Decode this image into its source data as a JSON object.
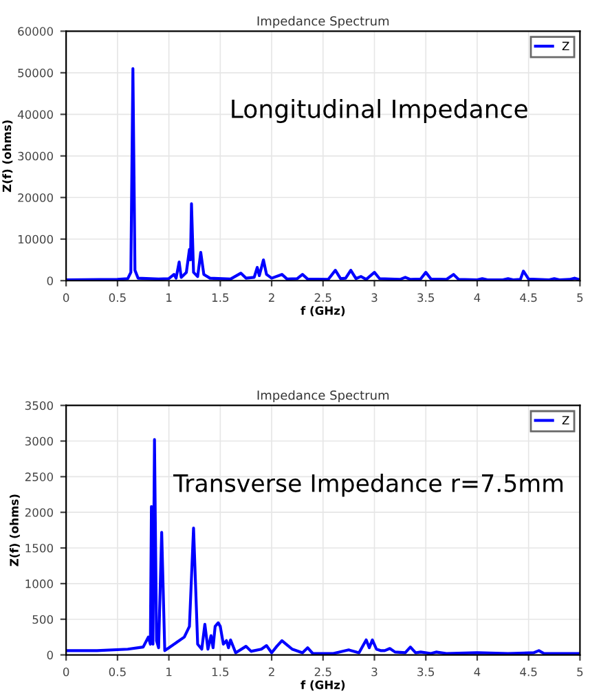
{
  "chart_data": [
    {
      "type": "line",
      "title": "Impedance Spectrum",
      "xlabel": "f (GHz)",
      "ylabel": "Z(f) (ohms)",
      "annotations": [
        "Longitudinal Impedance"
      ],
      "xlim": [
        0,
        5
      ],
      "ylim": [
        0,
        60000
      ],
      "xticks": [
        0,
        0.5,
        1,
        1.5,
        2,
        2.5,
        3,
        3.5,
        4,
        4.5,
        5
      ],
      "yticks": [
        0,
        10000,
        20000,
        30000,
        40000,
        50000,
        60000
      ],
      "grid": true,
      "legend": "top right",
      "marker": "none",
      "line_style": "solid",
      "series": [
        {
          "name": "Z",
          "color": "#0000ff",
          "x": [
            0,
            0.5,
            0.6,
            0.63,
            0.65,
            0.67,
            0.7,
            0.9,
            1.0,
            1.05,
            1.07,
            1.1,
            1.12,
            1.17,
            1.2,
            1.21,
            1.22,
            1.24,
            1.28,
            1.31,
            1.34,
            1.4,
            1.6,
            1.7,
            1.75,
            1.83,
            1.86,
            1.88,
            1.92,
            1.95,
            2.0,
            2.1,
            2.15,
            2.25,
            2.3,
            2.35,
            2.55,
            2.62,
            2.67,
            2.72,
            2.77,
            2.82,
            2.87,
            2.92,
            3.0,
            3.05,
            3.25,
            3.3,
            3.35,
            3.45,
            3.5,
            3.55,
            3.7,
            3.77,
            3.82,
            4.0,
            4.05,
            4.1,
            4.25,
            4.3,
            4.35,
            4.42,
            4.45,
            4.5,
            4.7,
            4.75,
            4.8,
            4.9,
            4.95,
            5.0
          ],
          "values": [
            200,
            300,
            500,
            2000,
            51000,
            2500,
            600,
            400,
            500,
            1500,
            600,
            4500,
            800,
            2000,
            7500,
            5000,
            18500,
            2000,
            1000,
            6800,
            1500,
            600,
            400,
            1800,
            600,
            800,
            3200,
            1200,
            5000,
            1500,
            600,
            1500,
            400,
            500,
            1500,
            400,
            300,
            2500,
            500,
            600,
            2500,
            500,
            1000,
            300,
            2000,
            500,
            300,
            800,
            300,
            400,
            2000,
            400,
            300,
            1500,
            300,
            200,
            500,
            200,
            200,
            500,
            200,
            300,
            2300,
            400,
            200,
            500,
            200,
            300,
            600,
            200
          ]
        }
      ]
    },
    {
      "type": "line",
      "title": "Impedance Spectrum",
      "xlabel": "f (GHz)",
      "ylabel": "Z(f) (ohms)",
      "annotations": [
        "Transverse Impedance r=7.5mm"
      ],
      "xlim": [
        0,
        5
      ],
      "ylim": [
        0,
        3500
      ],
      "xticks": [
        0,
        0.5,
        1,
        1.5,
        2,
        2.5,
        3,
        3.5,
        4,
        4.5,
        5
      ],
      "yticks": [
        0,
        500,
        1000,
        1500,
        2000,
        2500,
        3000,
        3500
      ],
      "grid": true,
      "legend": "top right",
      "marker": "none",
      "line_style": "solid",
      "series": [
        {
          "name": "Z",
          "color": "#0000ff",
          "x": [
            0,
            0.3,
            0.6,
            0.75,
            0.8,
            0.82,
            0.83,
            0.845,
            0.86,
            0.88,
            0.9,
            0.93,
            0.96,
            1.0,
            1.15,
            1.2,
            1.24,
            1.28,
            1.32,
            1.35,
            1.38,
            1.41,
            1.43,
            1.45,
            1.48,
            1.5,
            1.53,
            1.56,
            1.58,
            1.6,
            1.65,
            1.75,
            1.8,
            1.9,
            1.95,
            2.0,
            2.05,
            2.1,
            2.15,
            2.2,
            2.3,
            2.35,
            2.4,
            2.6,
            2.75,
            2.85,
            2.92,
            2.95,
            2.98,
            3.02,
            3.06,
            3.1,
            3.15,
            3.2,
            3.3,
            3.35,
            3.4,
            3.45,
            3.55,
            3.6,
            3.7,
            4.0,
            4.3,
            4.55,
            4.6,
            4.65,
            5.0
          ],
          "values": [
            60,
            60,
            80,
            110,
            250,
            150,
            2080,
            150,
            3020,
            200,
            100,
            1720,
            60,
            100,
            250,
            400,
            1780,
            150,
            80,
            430,
            80,
            270,
            100,
            400,
            450,
            400,
            150,
            200,
            100,
            210,
            30,
            120,
            50,
            80,
            130,
            30,
            120,
            200,
            140,
            80,
            30,
            100,
            20,
            20,
            70,
            30,
            210,
            100,
            210,
            80,
            60,
            60,
            90,
            40,
            30,
            110,
            30,
            40,
            20,
            40,
            20,
            30,
            20,
            30,
            60,
            20,
            20
          ]
        }
      ]
    }
  ]
}
